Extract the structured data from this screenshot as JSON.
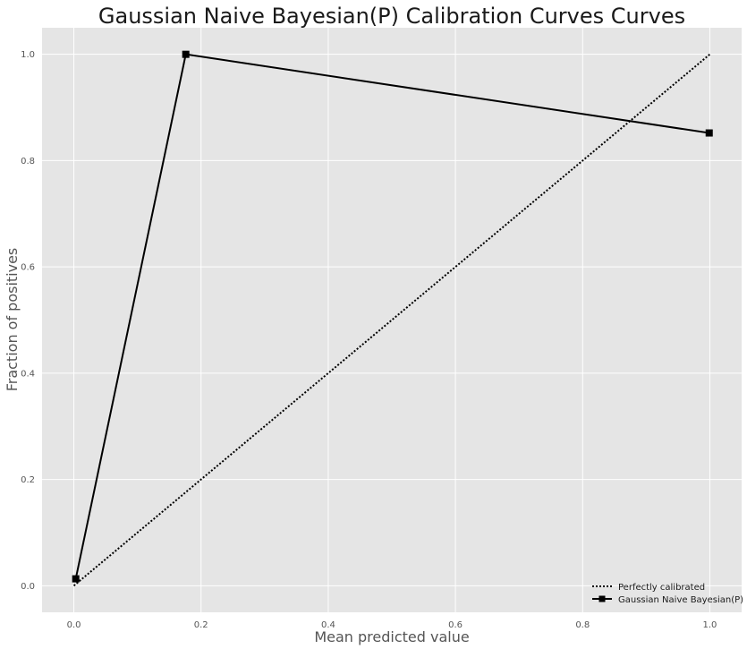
{
  "chart_data": {
    "type": "line",
    "title": "Gaussian Naive Bayesian(P) Calibration Curves Curves",
    "xlabel": "Mean predicted value",
    "ylabel": "Fraction of positives",
    "xlim": [
      -0.05,
      1.05
    ],
    "ylim": [
      -0.05,
      1.05
    ],
    "x_ticks": [
      0.0,
      0.2,
      0.4,
      0.6,
      0.8,
      1.0
    ],
    "y_ticks": [
      0.0,
      0.2,
      0.4,
      0.6,
      0.8,
      1.0
    ],
    "x_tick_labels": [
      "0.0",
      "0.2",
      "0.4",
      "0.6",
      "0.8",
      "1.0"
    ],
    "y_tick_labels": [
      "0.0",
      "0.2",
      "0.4",
      "0.6",
      "0.8",
      "1.0"
    ],
    "grid": true,
    "legend_position": "lower-right",
    "series": [
      {
        "name": "Perfectly calibrated",
        "style": "dotted",
        "marker": "none",
        "color": "#000000",
        "x": [
          0.0,
          1.0
        ],
        "y": [
          0.0,
          1.0
        ]
      },
      {
        "name": "Gaussian Naive Bayesian(P)",
        "style": "solid",
        "marker": "square",
        "color": "#000000",
        "x": [
          0.003,
          0.176,
          0.999
        ],
        "y": [
          0.013,
          1.0,
          0.852
        ]
      }
    ]
  },
  "colors": {
    "plot_background": "#e5e5e5",
    "grid": "#ffffff",
    "series": "#000000"
  }
}
